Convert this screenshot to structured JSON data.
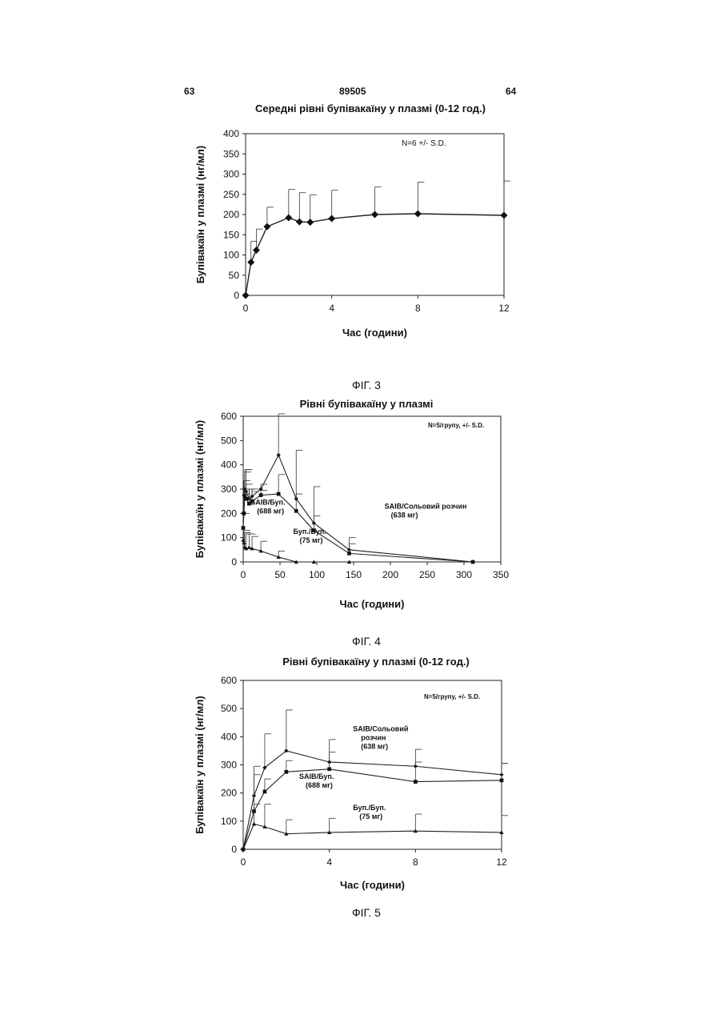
{
  "page": {
    "left_number": "63",
    "center_number": "89505",
    "right_number": "64"
  },
  "chart_data": [
    {
      "type": "line",
      "title": "Середні рівні бупівакаїну у плазмі (0-12 год.)",
      "xlabel": "Час (години)",
      "ylabel": "Бупівакаїн у плазмі (нг/мл)",
      "xlim": [
        0,
        12
      ],
      "ylim": [
        0,
        400
      ],
      "xticks": [
        0,
        4,
        8,
        12
      ],
      "yticks": [
        0,
        50,
        100,
        150,
        200,
        250,
        300,
        350,
        400
      ],
      "annotation": "N=6 +/- S.D.",
      "caption": "ФІГ. 3",
      "series": [
        {
          "marker": "diamond",
          "x": [
            0,
            0.25,
            0.5,
            1,
            2,
            2.5,
            3,
            4,
            6,
            8,
            12
          ],
          "values": [
            0,
            82,
            112,
            170,
            192,
            182,
            181,
            190,
            200,
            202,
            198
          ],
          "error": [
            0,
            52,
            52,
            48,
            70,
            72,
            68,
            70,
            68,
            78,
            85
          ]
        }
      ],
      "labels": []
    },
    {
      "type": "line",
      "title": "Рівні бупівакаїну у плазмі",
      "xlabel": "Час (години)",
      "ylabel": "Бупівакаїн у плазмі (нг/мл)",
      "xlim": [
        0,
        350
      ],
      "ylim": [
        0,
        600
      ],
      "xticks": [
        0,
        50,
        100,
        150,
        200,
        250,
        300,
        350
      ],
      "yticks": [
        0,
        100,
        200,
        300,
        400,
        500,
        600
      ],
      "annotation": "N=5/групу, +/- S.D.",
      "caption": "ФІГ. 4",
      "series": [
        {
          "marker": "diamond",
          "x": [
            0,
            1,
            2,
            4,
            8,
            12,
            24,
            48,
            72,
            96,
            144,
            312
          ],
          "values": [
            200,
            275,
            300,
            290,
            260,
            270,
            300,
            440,
            260,
            160,
            50,
            0
          ],
          "error": [
            100,
            60,
            80,
            90,
            40,
            30,
            20,
            170,
            200,
            150,
            50,
            0
          ]
        },
        {
          "marker": "square",
          "x": [
            0,
            1,
            2,
            4,
            8,
            12,
            24,
            48,
            72,
            96,
            144,
            312
          ],
          "values": [
            140,
            200,
            270,
            260,
            240,
            250,
            275,
            280,
            210,
            130,
            35,
            0
          ],
          "error": [
            60,
            80,
            100,
            60,
            60,
            40,
            20,
            80,
            70,
            60,
            40,
            0
          ]
        },
        {
          "marker": "triangle",
          "x": [
            0,
            1,
            2,
            4,
            8,
            12,
            24,
            48,
            72,
            96,
            144
          ],
          "values": [
            90,
            80,
            60,
            55,
            60,
            55,
            45,
            20,
            0,
            0,
            0
          ],
          "error": [
            30,
            50,
            60,
            60,
            55,
            50,
            40,
            25,
            0,
            0,
            0
          ]
        }
      ],
      "labels": [
        {
          "lines": [
            "SAIB/Буп.",
            "(688 мг)"
          ],
          "x": 10,
          "y": 235
        },
        {
          "lines": [
            "Буп./Буп.",
            "(75 мг)"
          ],
          "x": 68,
          "y": 115
        },
        {
          "lines": [
            "SAIB/Сольовий розчин",
            "(638 мг)"
          ],
          "x": 192,
          "y": 220
        }
      ]
    },
    {
      "type": "line",
      "title": "Рівні бупівакаїну у плазмі  (0-12 год.)",
      "xlabel": "Час (години)",
      "ylabel": "Бупівакаїн у плазмі (нг/мл)",
      "xlim": [
        0,
        12
      ],
      "ylim": [
        0,
        600
      ],
      "xticks": [
        0,
        4,
        8,
        12
      ],
      "yticks": [
        0,
        100,
        200,
        300,
        400,
        500,
        600
      ],
      "annotation": "N=5/групу, +/- S.D.",
      "caption": "ФІГ. 5",
      "series": [
        {
          "marker": "diamond",
          "x": [
            0,
            0.5,
            1,
            2,
            4,
            8,
            12
          ],
          "values": [
            0,
            190,
            290,
            350,
            310,
            295,
            265
          ],
          "error": [
            0,
            105,
            120,
            145,
            80,
            60,
            40
          ]
        },
        {
          "marker": "square",
          "x": [
            0,
            0.5,
            1,
            2,
            4,
            8,
            12
          ],
          "values": [
            0,
            135,
            205,
            275,
            285,
            240,
            245
          ],
          "error": [
            0,
            130,
            45,
            40,
            60,
            70,
            60
          ]
        },
        {
          "marker": "triangle",
          "x": [
            0,
            0.5,
            1,
            2,
            4,
            8,
            12
          ],
          "values": [
            0,
            90,
            80,
            55,
            60,
            65,
            60
          ],
          "error": [
            0,
            70,
            80,
            50,
            50,
            60,
            60
          ]
        }
      ],
      "labels": [
        {
          "lines": [
            "SAIB/Сольовий",
            "розчин",
            "(638 мг)"
          ],
          "x": 5.1,
          "y": 420
        },
        {
          "lines": [
            "SAIB/Буп.",
            "(688 мг)"
          ],
          "x": 2.6,
          "y": 250
        },
        {
          "lines": [
            "Буп./Буп.",
            "(75 мг)"
          ],
          "x": 5.1,
          "y": 140
        }
      ]
    }
  ]
}
